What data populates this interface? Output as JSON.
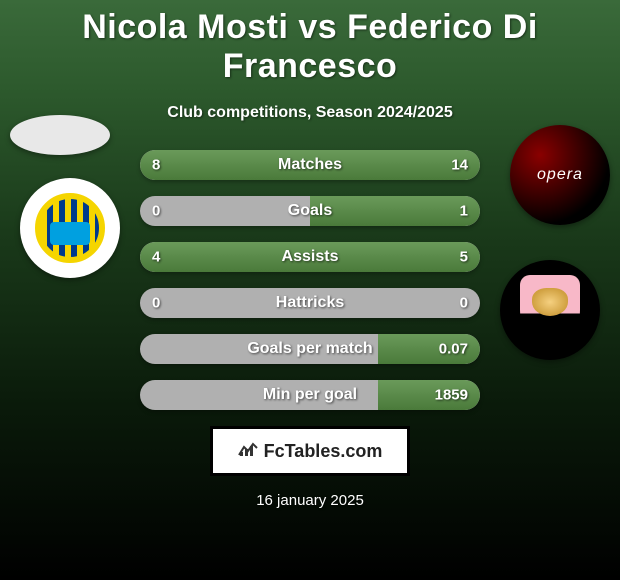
{
  "title": "Nicola Mosti vs Federico Di Francesco",
  "subtitle": "Club competitions, Season 2024/2025",
  "brand": "FcTables.com",
  "date": "16 january 2025",
  "colors": {
    "bar_fill": "#5a8a4a",
    "bar_bg": "#b0b0b0",
    "text": "#ffffff"
  },
  "stats": [
    {
      "label": "Matches",
      "left_val": "8",
      "right_val": "14",
      "left_pct": 36,
      "right_pct": 64
    },
    {
      "label": "Goals",
      "left_val": "0",
      "right_val": "1",
      "left_pct": 0,
      "right_pct": 50
    },
    {
      "label": "Assists",
      "left_val": "4",
      "right_val": "5",
      "left_pct": 44,
      "right_pct": 56
    },
    {
      "label": "Hattricks",
      "left_val": "0",
      "right_val": "0",
      "left_pct": 0,
      "right_pct": 0
    },
    {
      "label": "Goals per match",
      "left_val": "",
      "right_val": "0.07",
      "left_pct": 0,
      "right_pct": 30
    },
    {
      "label": "Min per goal",
      "left_val": "",
      "right_val": "1859",
      "left_pct": 0,
      "right_pct": 30
    }
  ]
}
